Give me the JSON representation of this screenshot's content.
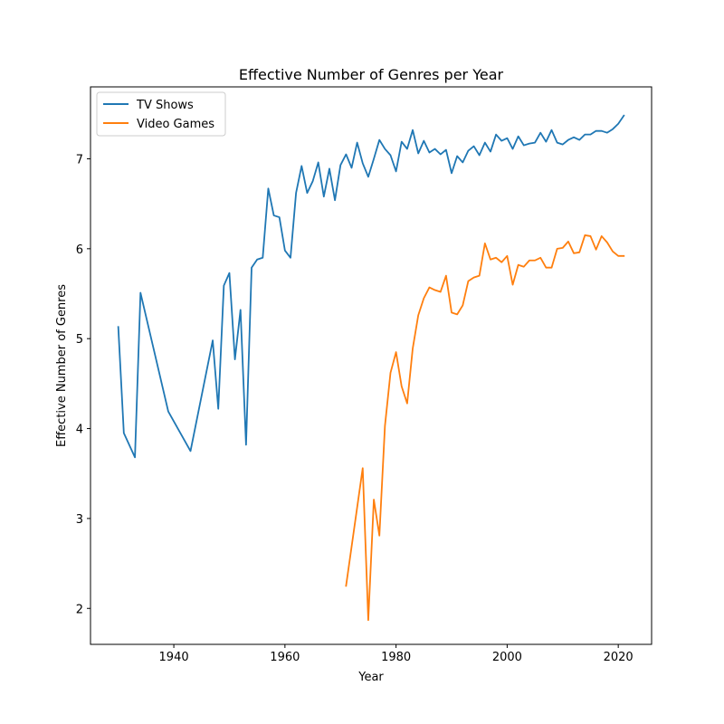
{
  "chart_data": {
    "type": "line",
    "title": "Effective Number of Genres per Year",
    "xlabel": "Year",
    "ylabel": "Effective Number of Genres",
    "xlim": [
      1925,
      2026
    ],
    "ylim": [
      1.6,
      7.8
    ],
    "xticks": [
      1940,
      1960,
      1980,
      2000,
      2020
    ],
    "yticks": [
      2,
      3,
      4,
      5,
      6,
      7
    ],
    "grid": false,
    "legend_position": "upper-left",
    "series": [
      {
        "name": "TV Shows",
        "color": "#1f77b4",
        "points": [
          [
            1930,
            5.13
          ],
          [
            1931,
            3.95
          ],
          [
            1933,
            3.68
          ],
          [
            1934,
            5.51
          ],
          [
            1939,
            4.19
          ],
          [
            1943,
            3.75
          ],
          [
            1947,
            4.98
          ],
          [
            1948,
            4.22
          ],
          [
            1949,
            5.59
          ],
          [
            1950,
            5.73
          ],
          [
            1951,
            4.77
          ],
          [
            1952,
            5.32
          ],
          [
            1953,
            3.82
          ],
          [
            1954,
            5.79
          ],
          [
            1955,
            5.88
          ],
          [
            1956,
            5.9
          ],
          [
            1957,
            6.67
          ],
          [
            1958,
            6.37
          ],
          [
            1959,
            6.35
          ],
          [
            1960,
            5.98
          ],
          [
            1961,
            5.9
          ],
          [
            1962,
            6.62
          ],
          [
            1963,
            6.92
          ],
          [
            1964,
            6.62
          ],
          [
            1965,
            6.75
          ],
          [
            1966,
            6.96
          ],
          [
            1967,
            6.58
          ],
          [
            1968,
            6.89
          ],
          [
            1969,
            6.54
          ],
          [
            1970,
            6.93
          ],
          [
            1971,
            7.05
          ],
          [
            1972,
            6.9
          ],
          [
            1973,
            7.18
          ],
          [
            1974,
            6.95
          ],
          [
            1975,
            6.8
          ],
          [
            1976,
            7.0
          ],
          [
            1977,
            7.21
          ],
          [
            1978,
            7.11
          ],
          [
            1979,
            7.04
          ],
          [
            1980,
            6.86
          ],
          [
            1981,
            7.19
          ],
          [
            1982,
            7.11
          ],
          [
            1983,
            7.32
          ],
          [
            1984,
            7.06
          ],
          [
            1985,
            7.2
          ],
          [
            1986,
            7.07
          ],
          [
            1987,
            7.11
          ],
          [
            1988,
            7.05
          ],
          [
            1989,
            7.1
          ],
          [
            1990,
            6.84
          ],
          [
            1991,
            7.03
          ],
          [
            1992,
            6.96
          ],
          [
            1993,
            7.09
          ],
          [
            1994,
            7.14
          ],
          [
            1995,
            7.04
          ],
          [
            1996,
            7.18
          ],
          [
            1997,
            7.08
          ],
          [
            1998,
            7.27
          ],
          [
            1999,
            7.2
          ],
          [
            2000,
            7.23
          ],
          [
            2001,
            7.11
          ],
          [
            2002,
            7.25
          ],
          [
            2003,
            7.15
          ],
          [
            2004,
            7.17
          ],
          [
            2005,
            7.18
          ],
          [
            2006,
            7.29
          ],
          [
            2007,
            7.19
          ],
          [
            2008,
            7.32
          ],
          [
            2009,
            7.18
          ],
          [
            2010,
            7.16
          ],
          [
            2011,
            7.21
          ],
          [
            2012,
            7.24
          ],
          [
            2013,
            7.21
          ],
          [
            2014,
            7.27
          ],
          [
            2015,
            7.27
          ],
          [
            2016,
            7.31
          ],
          [
            2017,
            7.31
          ],
          [
            2018,
            7.29
          ],
          [
            2019,
            7.33
          ],
          [
            2020,
            7.39
          ],
          [
            2021,
            7.48
          ]
        ]
      },
      {
        "name": "Video Games",
        "color": "#ff7f0e",
        "points": [
          [
            1971,
            2.25
          ],
          [
            1974,
            3.56
          ],
          [
            1975,
            1.87
          ],
          [
            1976,
            3.21
          ],
          [
            1977,
            2.81
          ],
          [
            1978,
            4.03
          ],
          [
            1979,
            4.62
          ],
          [
            1980,
            4.85
          ],
          [
            1981,
            4.47
          ],
          [
            1982,
            4.28
          ],
          [
            1983,
            4.89
          ],
          [
            1984,
            5.26
          ],
          [
            1985,
            5.45
          ],
          [
            1986,
            5.57
          ],
          [
            1987,
            5.54
          ],
          [
            1988,
            5.52
          ],
          [
            1989,
            5.7
          ],
          [
            1990,
            5.29
          ],
          [
            1991,
            5.27
          ],
          [
            1992,
            5.37
          ],
          [
            1993,
            5.64
          ],
          [
            1994,
            5.68
          ],
          [
            1995,
            5.7
          ],
          [
            1996,
            6.06
          ],
          [
            1997,
            5.88
          ],
          [
            1998,
            5.9
          ],
          [
            1999,
            5.85
          ],
          [
            2000,
            5.92
          ],
          [
            2001,
            5.6
          ],
          [
            2002,
            5.82
          ],
          [
            2003,
            5.8
          ],
          [
            2004,
            5.87
          ],
          [
            2005,
            5.87
          ],
          [
            2006,
            5.9
          ],
          [
            2007,
            5.79
          ],
          [
            2008,
            5.79
          ],
          [
            2009,
            6.0
          ],
          [
            2010,
            6.01
          ],
          [
            2011,
            6.08
          ],
          [
            2012,
            5.95
          ],
          [
            2013,
            5.96
          ],
          [
            2014,
            6.15
          ],
          [
            2015,
            6.14
          ],
          [
            2016,
            5.99
          ],
          [
            2017,
            6.14
          ],
          [
            2018,
            6.07
          ],
          [
            2019,
            5.97
          ],
          [
            2020,
            5.92
          ],
          [
            2021,
            5.92
          ]
        ]
      }
    ]
  }
}
